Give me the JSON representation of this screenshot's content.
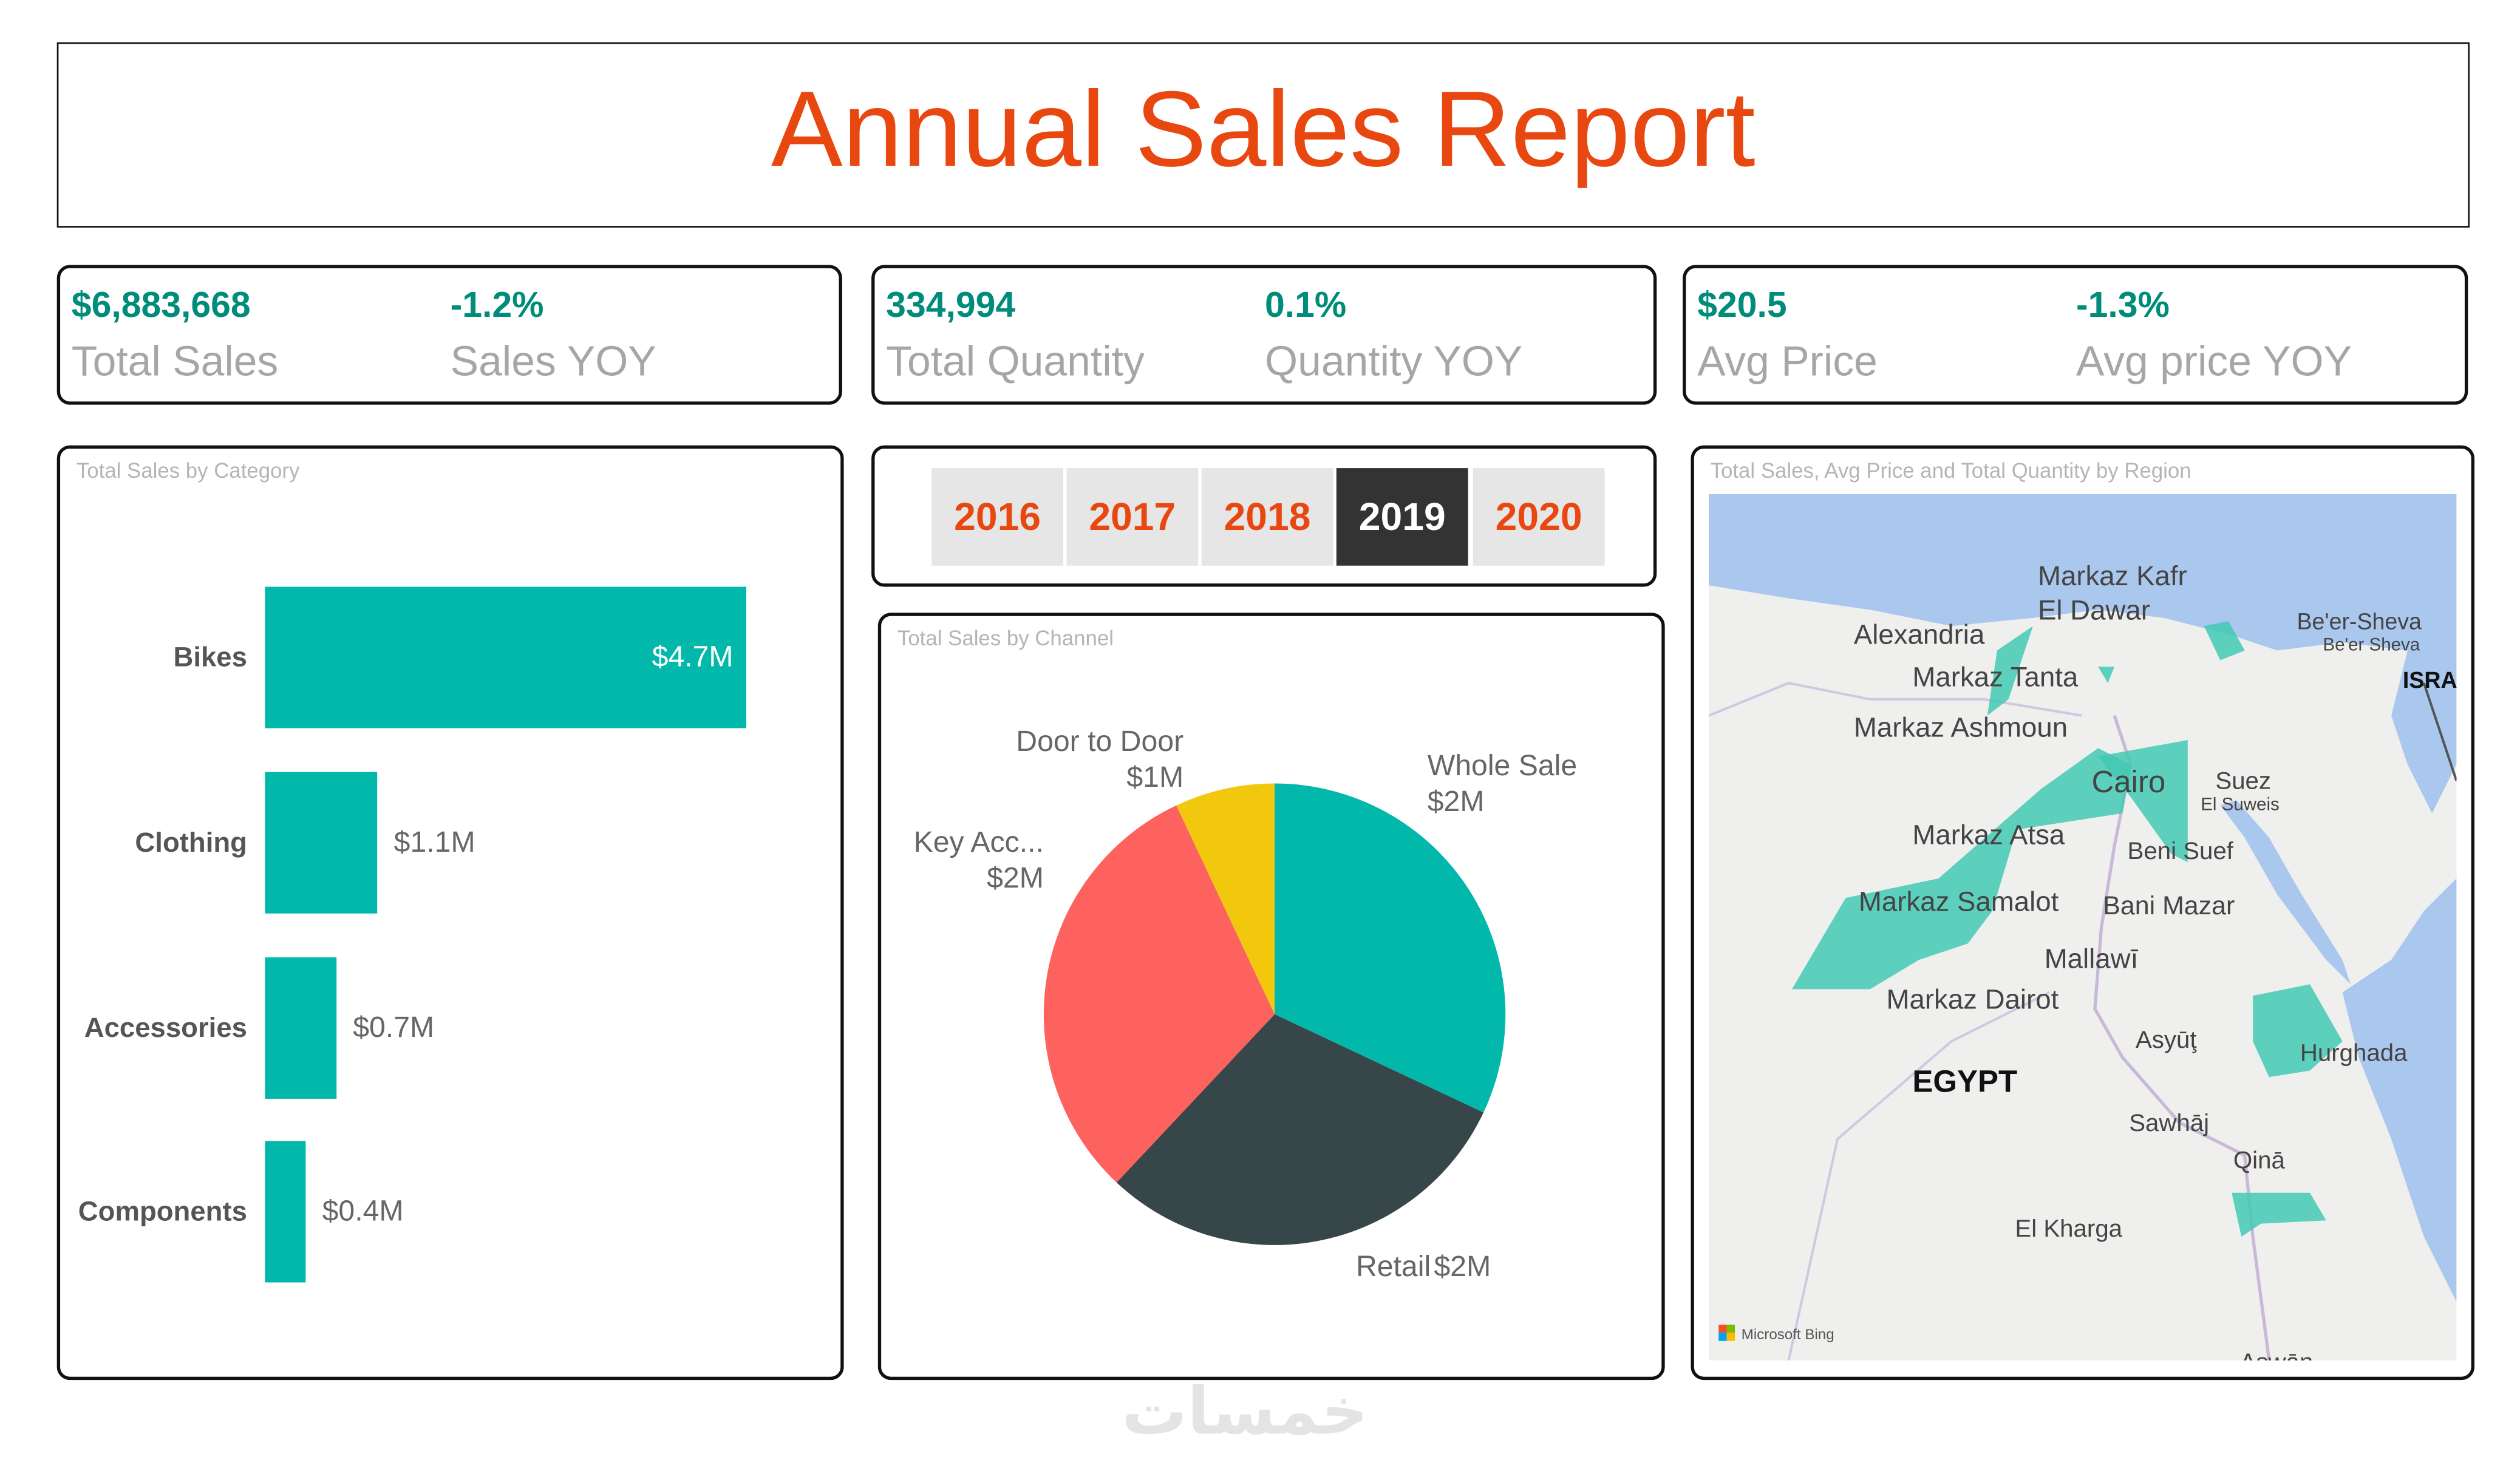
{
  "header": {
    "title": "Annual Sales Report"
  },
  "kpis": [
    {
      "value": "$6,883,668",
      "label": "Total Sales",
      "yoy_value": "-1.2%",
      "yoy_label": "Sales YOY"
    },
    {
      "value": "334,994",
      "label": "Total Quantity",
      "yoy_value": "0.1%",
      "yoy_label": "Quantity YOY"
    },
    {
      "value": "$20.5",
      "label": "Avg Price",
      "yoy_value": "-1.3%",
      "yoy_label": "Avg price YOY"
    }
  ],
  "year_slicer": {
    "years": [
      "2016",
      "2017",
      "2018",
      "2019",
      "2020"
    ],
    "selected": "2019"
  },
  "colors": {
    "accent": "#E8470F",
    "teal": "#01B8AA",
    "dark": "#374649",
    "red": "#FD625E",
    "yellow": "#F2C80F",
    "kpi": "#008C7A"
  },
  "chart_data": [
    {
      "type": "bar",
      "orientation": "horizontal",
      "title": "Total Sales by Category",
      "categories": [
        "Bikes",
        "Clothing",
        "Accessories",
        "Components"
      ],
      "values": [
        4.7,
        1.1,
        0.7,
        0.4
      ],
      "data_labels": [
        "$4.7M",
        "$1.1M",
        "$0.7M",
        "$0.4M"
      ],
      "unit": "$M",
      "xlim": [
        0,
        4.7
      ]
    },
    {
      "type": "pie",
      "title": "Total Sales by Channel",
      "categories": [
        "Whole Sale",
        "Retail",
        "Key Acc...",
        "Door to Door"
      ],
      "values": [
        32,
        30,
        31,
        7
      ],
      "data_labels": [
        "$2M",
        "$2M",
        "$2M",
        "$1M"
      ],
      "colors": [
        "#01B8AA",
        "#374649",
        "#FD625E",
        "#F2C80F"
      ]
    }
  ],
  "map": {
    "title": "Total Sales, Avg Price and Total Quantity by Region",
    "labels": [
      "Markaz Kafr",
      "El Dawar",
      "Alexandria",
      "Markaz Tanta",
      "Markaz Ashmoun",
      "Cairo",
      "Suez",
      "El Suweis",
      "Be'er-Sheva",
      "Be'er Sheva",
      "ISRA",
      "Markaz Atsa",
      "Beni Suef",
      "Markaz Samalot",
      "Bani Mazar",
      "Mallawī",
      "Markaz Dairot",
      "Asyūţ",
      "EGYPT",
      "Hurghada",
      "Sawhāj",
      "Qinā",
      "El Kharga",
      "Aswān"
    ],
    "attribution": "Microsoft Bing"
  },
  "watermark": "خمسات"
}
